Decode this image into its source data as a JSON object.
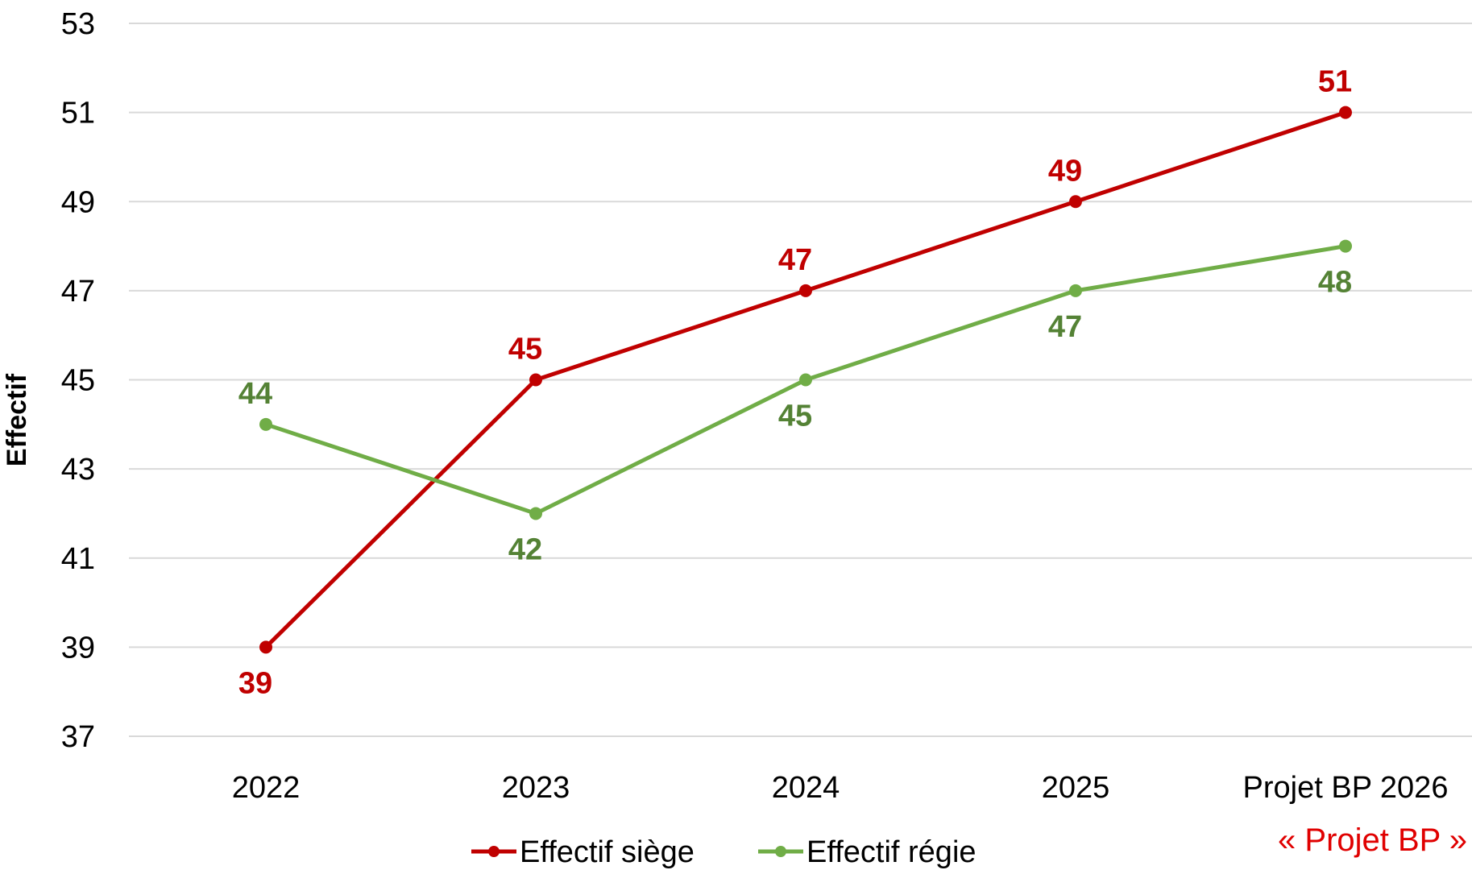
{
  "chart_data": {
    "type": "line",
    "categories": [
      "2022",
      "2023",
      "2024",
      "2025",
      "Projet BP 2026"
    ],
    "series": [
      {
        "name": "Effectif siège",
        "values": [
          39,
          45,
          47,
          49,
          51
        ],
        "color": "#c00000",
        "label_color": "#c00000"
      },
      {
        "name": "Effectif régie",
        "values": [
          44,
          42,
          45,
          47,
          48
        ],
        "color": "#70ad47",
        "label_color": "#548235"
      }
    ],
    "title": "",
    "xlabel": "",
    "ylabel": "Effectif",
    "ylim": [
      37,
      53
    ],
    "yticks": [
      37,
      39,
      41,
      43,
      45,
      47,
      49,
      51,
      53
    ],
    "grid": true,
    "legend_position": "bottom",
    "annotation": "« Projet BP »",
    "annotation_color": "#e00000"
  }
}
